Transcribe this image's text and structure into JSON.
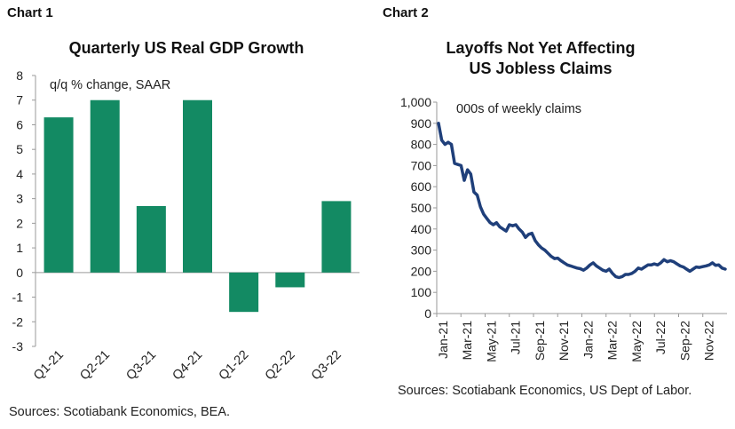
{
  "charts": [
    {
      "chart_number": "Chart 1",
      "source": "Sources: Scotiabank Economics, BEA."
    },
    {
      "chart_number": "Chart 2",
      "source": "Sources: Scotiabank Economics, US Dept of Labor."
    }
  ],
  "chart_data": [
    {
      "type": "bar",
      "title": "Quarterly US Real GDP Growth",
      "ylabel": "q/q % change, SAAR",
      "xlabel": "",
      "categories": [
        "Q1-21",
        "Q2-21",
        "Q3-21",
        "Q4-21",
        "Q1-22",
        "Q2-22",
        "Q3-22"
      ],
      "values": [
        6.3,
        7.0,
        2.7,
        7.0,
        -1.6,
        -0.6,
        2.9
      ],
      "ylim": [
        -3,
        8
      ],
      "yticks": [
        "8",
        "7",
        "6",
        "5",
        "4",
        "3",
        "2",
        "1",
        "0",
        "-1",
        "-2",
        "-3"
      ],
      "bar_color": "#138a63",
      "grid": false
    },
    {
      "type": "line",
      "title": "Layoffs Not Yet Affecting US Jobless Claims",
      "ylabel": "000s of weekly claims",
      "xlabel": "",
      "ylim": [
        0,
        1000
      ],
      "yticks": [
        "1,000",
        "900",
        "800",
        "700",
        "600",
        "500",
        "400",
        "300",
        "200",
        "100",
        "0"
      ],
      "xticks": [
        "Jan-21",
        "Mar-21",
        "May-21",
        "Jul-21",
        "Sep-21",
        "Nov-21",
        "Jan-22",
        "Mar-22",
        "May-22",
        "Jul-22",
        "Sep-22",
        "Nov-22"
      ],
      "line_color": "#1f3f7a",
      "grid": false,
      "series": [
        {
          "values": [
            900,
            820,
            800,
            810,
            800,
            710,
            705,
            700,
            630,
            680,
            660,
            575,
            560,
            505,
            470,
            450,
            430,
            420,
            430,
            410,
            400,
            390,
            420,
            415,
            420,
            400,
            385,
            360,
            375,
            380,
            345,
            325,
            310,
            300,
            285,
            270,
            260,
            262,
            250,
            240,
            230,
            225,
            220,
            215,
            212,
            205,
            215,
            230,
            240,
            225,
            215,
            205,
            200,
            210,
            190,
            175,
            170,
            175,
            185,
            185,
            190,
            200,
            215,
            210,
            220,
            230,
            230,
            235,
            230,
            240,
            255,
            245,
            250,
            245,
            235,
            225,
            220,
            210,
            200,
            210,
            220,
            218,
            222,
            225,
            230,
            240,
            228,
            230,
            215,
            210
          ]
        }
      ]
    }
  ]
}
